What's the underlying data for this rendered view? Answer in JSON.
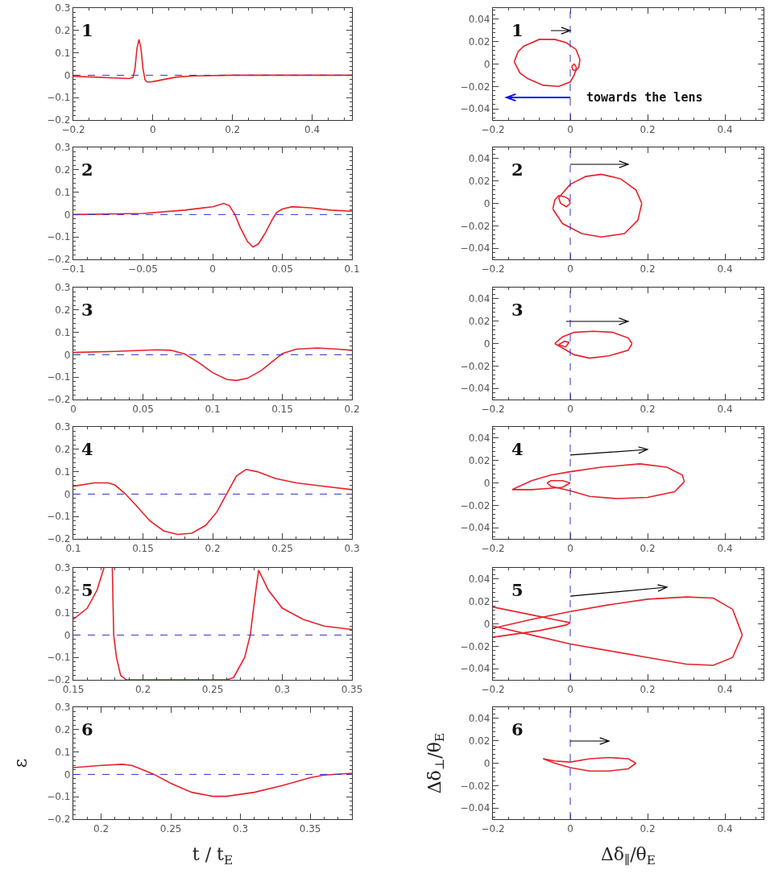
{
  "chart_data": [
    {
      "type": "line",
      "annotations": [
        "1"
      ],
      "x": [
        -0.2,
        -0.15,
        -0.1,
        -0.06,
        -0.05,
        -0.045,
        -0.04,
        -0.035,
        -0.03,
        -0.025,
        -0.02,
        -0.015,
        -0.005,
        0.01,
        0.03,
        0.06,
        0.1,
        0.2,
        0.3,
        0.5
      ],
      "series": [
        {
          "color": "#e8202a",
          "values": [
            -0.005,
            -0.008,
            -0.012,
            -0.015,
            -0.01,
            0.03,
            0.12,
            0.16,
            0.12,
            0.03,
            -0.02,
            -0.03,
            -0.03,
            -0.025,
            -0.018,
            -0.008,
            -0.003,
            0,
            0,
            0
          ]
        }
      ],
      "xlim": [
        -0.2,
        0.5
      ],
      "xticks": [
        -0.2,
        0,
        0.2,
        0.4
      ],
      "ylim": [
        -0.2,
        0.3
      ],
      "yticks": [
        -0.2,
        -0.1,
        0,
        0.1,
        0.2,
        0.3
      ],
      "line_style": "solid",
      "ref_lines": [
        {
          "axis": "y",
          "value": 0,
          "color": "#3333cc",
          "line_style": "dashed"
        }
      ]
    },
    {
      "type": "line",
      "annotations": [
        "1",
        "towards the lens"
      ],
      "series": [
        {
          "color": "#e8202a",
          "x": [
            -0.145,
            -0.13,
            -0.11,
            -0.07,
            -0.03,
            0,
            0.01,
            0.012,
            0.016
          ],
          "values": [
            0.002,
            -0.008,
            -0.013,
            -0.019,
            -0.02,
            -0.016,
            -0.01,
            -0.008,
            -0.003
          ]
        },
        {
          "color": "#e8202a",
          "x": [
            -0.145,
            -0.135,
            -0.12,
            -0.08,
            -0.04,
            -0.01,
            0.015,
            0.025
          ],
          "values": [
            0.002,
            0.011,
            0.016,
            0.022,
            0.022,
            0.019,
            0.013,
            0.004
          ]
        },
        {
          "color": "#e8202a",
          "x": [
            0.004,
            0.006,
            0.014,
            0.022,
            0.025
          ],
          "values": [
            -0.002,
            -0.005,
            -0.006,
            -0.003,
            0.004
          ]
        },
        {
          "color": "#e8202a",
          "x": [
            0.004,
            0.01,
            0.016
          ],
          "values": [
            -0.002,
            0,
            -0.003
          ]
        }
      ],
      "xlim": [
        -0.2,
        0.5
      ],
      "xticks": [
        -0.2,
        0,
        0.2,
        0.4
      ],
      "ylim": [
        -0.05,
        0.05
      ],
      "yticks": [
        -0.04,
        -0.02,
        0,
        0.02,
        0.04
      ],
      "line_style": "solid",
      "ref_lines": [
        {
          "axis": "x",
          "value": 0,
          "color": "#3333cc",
          "line_style": "dashed"
        }
      ]
    },
    {
      "type": "line",
      "annotations": [
        "2"
      ],
      "x": [
        -0.1,
        -0.05,
        -0.02,
        0,
        0.008,
        0.012,
        0.016,
        0.02,
        0.025,
        0.029,
        0.033,
        0.038,
        0.043,
        0.046,
        0.05,
        0.057,
        0.07,
        0.085,
        0.1
      ],
      "series": [
        {
          "color": "#e8202a",
          "values": [
            0,
            0.005,
            0.02,
            0.035,
            0.05,
            0.04,
            0,
            -0.06,
            -0.12,
            -0.145,
            -0.13,
            -0.08,
            -0.02,
            0.01,
            0.025,
            0.035,
            0.03,
            0.02,
            0.015
          ]
        }
      ],
      "xlim": [
        -0.1,
        0.1
      ],
      "xticks": [
        -0.1,
        -0.05,
        0,
        0.05,
        0.1
      ],
      "ylim": [
        -0.2,
        0.3
      ],
      "yticks": [
        -0.2,
        -0.1,
        0,
        0.1,
        0.2,
        0.3
      ],
      "line_style": "solid",
      "ref_lines": [
        {
          "axis": "y",
          "value": 0,
          "color": "#3333cc",
          "line_style": "dashed"
        }
      ]
    },
    {
      "type": "line",
      "annotations": [
        "2"
      ],
      "series": [
        {
          "color": "#e8202a",
          "x": [
            -0.03,
            0,
            0.04,
            0.08,
            0.13,
            0.17,
            0.185
          ],
          "values": [
            0.005,
            0.017,
            0.024,
            0.026,
            0.022,
            0.012,
            0
          ]
        },
        {
          "color": "#e8202a",
          "x": [
            -0.045,
            -0.02,
            0.03,
            0.08,
            0.14,
            0.175,
            0.185
          ],
          "values": [
            -0.005,
            -0.018,
            -0.027,
            -0.03,
            -0.027,
            -0.015,
            0
          ]
        },
        {
          "color": "#e8202a",
          "x": [
            -0.045,
            -0.04,
            -0.03,
            -0.015,
            -0.004,
            0
          ],
          "values": [
            -0.005,
            0.003,
            0.007,
            0.006,
            0.004,
            0
          ]
        },
        {
          "color": "#e8202a",
          "x": [
            -0.03,
            -0.025,
            -0.01,
            0
          ],
          "values": [
            0.005,
            0,
            -0.003,
            0
          ]
        }
      ],
      "xlim": [
        -0.2,
        0.5
      ],
      "xticks": [
        -0.2,
        0,
        0.2,
        0.4
      ],
      "ylim": [
        -0.05,
        0.05
      ],
      "yticks": [
        -0.04,
        -0.02,
        0,
        0.02,
        0.04
      ],
      "line_style": "solid",
      "ref_lines": [
        {
          "axis": "x",
          "value": 0,
          "color": "#3333cc",
          "line_style": "dashed"
        }
      ]
    },
    {
      "type": "line",
      "annotations": [
        "3"
      ],
      "x": [
        0,
        0.03,
        0.06,
        0.07,
        0.08,
        0.09,
        0.1,
        0.11,
        0.117,
        0.125,
        0.135,
        0.145,
        0.15,
        0.16,
        0.175,
        0.19,
        0.2
      ],
      "series": [
        {
          "color": "#e8202a",
          "values": [
            0.01,
            0.015,
            0.022,
            0.02,
            0.003,
            -0.035,
            -0.08,
            -0.11,
            -0.115,
            -0.105,
            -0.07,
            -0.02,
            0.005,
            0.025,
            0.03,
            0.025,
            0.02
          ]
        }
      ],
      "xlim": [
        0,
        0.2
      ],
      "xticks": [
        0,
        0.05,
        0.1,
        0.15,
        0.2
      ],
      "ylim": [
        -0.2,
        0.3
      ],
      "yticks": [
        -0.2,
        -0.1,
        0,
        0.1,
        0.2,
        0.3
      ],
      "line_style": "solid",
      "ref_lines": [
        {
          "axis": "y",
          "value": 0,
          "color": "#3333cc",
          "line_style": "dashed"
        }
      ]
    },
    {
      "type": "line",
      "annotations": [
        "3"
      ],
      "series": [
        {
          "color": "#e8202a",
          "x": [
            -0.04,
            -0.02,
            0.01,
            0.06,
            0.11,
            0.15,
            0.16
          ],
          "values": [
            0,
            0.006,
            0.01,
            0.011,
            0.01,
            0.005,
            0
          ]
        },
        {
          "color": "#e8202a",
          "x": [
            -0.04,
            -0.02,
            0.01,
            0.05,
            0.1,
            0.15,
            0.16
          ],
          "values": [
            0,
            -0.004,
            -0.01,
            -0.013,
            -0.011,
            -0.006,
            0
          ]
        },
        {
          "color": "#e8202a",
          "x": [
            -0.03,
            -0.015,
            -0.003
          ],
          "values": [
            -0.001,
            0.002,
            0.001
          ]
        },
        {
          "color": "#e8202a",
          "x": [
            -0.03,
            -0.012,
            -0.003
          ],
          "values": [
            -0.001,
            -0.003,
            0.001
          ]
        }
      ],
      "xlim": [
        -0.2,
        0.5
      ],
      "xticks": [
        -0.2,
        0,
        0.2,
        0.4
      ],
      "ylim": [
        -0.05,
        0.05
      ],
      "yticks": [
        -0.04,
        -0.02,
        0,
        0.02,
        0.04
      ],
      "line_style": "solid",
      "ref_lines": [
        {
          "axis": "x",
          "value": 0,
          "color": "#3333cc",
          "line_style": "dashed"
        }
      ]
    },
    {
      "type": "line",
      "annotations": [
        "4"
      ],
      "x": [
        0.1,
        0.115,
        0.125,
        0.13,
        0.137,
        0.145,
        0.155,
        0.165,
        0.175,
        0.185,
        0.195,
        0.203,
        0.21,
        0.217,
        0.224,
        0.232,
        0.245,
        0.26,
        0.28,
        0.3
      ],
      "series": [
        {
          "color": "#e8202a",
          "values": [
            0.035,
            0.05,
            0.05,
            0.04,
            0.003,
            -0.05,
            -0.12,
            -0.165,
            -0.18,
            -0.175,
            -0.14,
            -0.08,
            0,
            0.08,
            0.11,
            0.1,
            0.07,
            0.05,
            0.035,
            0.02
          ]
        }
      ],
      "xlim": [
        0.1,
        0.3
      ],
      "xticks": [
        0.1,
        0.15,
        0.2,
        0.25,
        0.3
      ],
      "ylim": [
        -0.2,
        0.3
      ],
      "yticks": [
        -0.2,
        -0.1,
        0,
        0.1,
        0.2,
        0.3
      ],
      "line_style": "solid",
      "ref_lines": [
        {
          "axis": "y",
          "value": 0,
          "color": "#3333cc",
          "line_style": "dashed"
        }
      ]
    },
    {
      "type": "line",
      "annotations": [
        "4"
      ],
      "series": [
        {
          "color": "#e8202a",
          "x": [
            -0.15,
            -0.1,
            -0.05,
            0,
            0.08,
            0.18,
            0.25,
            0.29,
            0.295
          ],
          "values": [
            -0.006,
            0.002,
            0.007,
            0.01,
            0.014,
            0.017,
            0.014,
            0.007,
            0.001
          ]
        },
        {
          "color": "#e8202a",
          "x": [
            -0.06,
            -0.05,
            0,
            0.05,
            0.12,
            0.2,
            0.27,
            0.295
          ],
          "values": [
            0,
            -0.003,
            -0.007,
            -0.012,
            -0.014,
            -0.013,
            -0.008,
            0.001
          ]
        },
        {
          "color": "#e8202a",
          "x": [
            -0.06,
            -0.05,
            -0.02,
            0
          ],
          "values": [
            0,
            0.002,
            0.002,
            0
          ]
        },
        {
          "color": "#e8202a",
          "x": [
            -0.15,
            -0.1,
            -0.06,
            -0.02,
            0
          ],
          "values": [
            -0.006,
            -0.006,
            -0.005,
            -0.004,
            0
          ]
        }
      ],
      "xlim": [
        -0.2,
        0.5
      ],
      "xticks": [
        -0.2,
        0,
        0.2,
        0.4
      ],
      "ylim": [
        -0.05,
        0.05
      ],
      "yticks": [
        -0.04,
        -0.02,
        0,
        0.02,
        0.04
      ],
      "line_style": "solid",
      "ref_lines": [
        {
          "axis": "x",
          "value": 0,
          "color": "#3333cc",
          "line_style": "dashed"
        }
      ]
    },
    {
      "type": "line",
      "annotations": [
        "5"
      ],
      "x": [
        0.15,
        0.16,
        0.167,
        0.172,
        0.175,
        0.178,
        0.179,
        0.181,
        0.184,
        0.188,
        0.22,
        0.26,
        0.265,
        0.273,
        0.277,
        0.281,
        0.283,
        0.29,
        0.3,
        0.315,
        0.33,
        0.35
      ],
      "series": [
        {
          "color": "#e8202a",
          "values": [
            0.07,
            0.12,
            0.2,
            0.3,
            null,
            0.3,
            0,
            -0.1,
            -0.18,
            -0.2,
            -0.2,
            -0.2,
            -0.19,
            -0.1,
            0,
            0.2,
            0.29,
            0.2,
            0.12,
            0.07,
            0.04,
            0.025
          ]
        }
      ],
      "xlim": [
        0.15,
        0.35
      ],
      "xticks": [
        0.15,
        0.2,
        0.25,
        0.3,
        0.35
      ],
      "ylim": [
        -0.2,
        0.3
      ],
      "yticks": [
        -0.2,
        -0.1,
        0,
        0.1,
        0.2,
        0.3
      ],
      "line_style": "solid",
      "ref_lines": [
        {
          "axis": "y",
          "value": 0,
          "color": "#3333cc",
          "line_style": "dashed"
        }
      ]
    },
    {
      "type": "line",
      "annotations": [
        "5"
      ],
      "series": [
        {
          "color": "#e8202a",
          "x": [
            -0.2,
            -0.1,
            -0.03,
            0
          ],
          "values": [
            0.015,
            0.008,
            0.003,
            0.001
          ]
        },
        {
          "color": "#e8202a",
          "x": [
            -0.2,
            -0.08,
            -0.01,
            0
          ],
          "values": [
            -0.012,
            -0.006,
            -0.001,
            0.001
          ]
        },
        {
          "color": "#e8202a",
          "x": [
            -0.2,
            -0.1,
            0,
            0.1,
            0.2,
            0.3,
            0.37,
            0.42,
            0.445
          ],
          "values": [
            -0.004,
            0.004,
            0.011,
            0.017,
            0.022,
            0.024,
            0.023,
            0.013,
            -0.01
          ]
        },
        {
          "color": "#e8202a",
          "x": [
            -0.2,
            -0.1,
            0,
            0.1,
            0.2,
            0.3,
            0.37,
            0.42,
            0.445
          ],
          "values": [
            -0.002,
            -0.01,
            -0.018,
            -0.024,
            -0.03,
            -0.036,
            -0.037,
            -0.03,
            -0.01
          ]
        }
      ],
      "xlim": [
        -0.2,
        0.5
      ],
      "xticks": [
        -0.2,
        0,
        0.2,
        0.4
      ],
      "ylim": [
        -0.05,
        0.05
      ],
      "yticks": [
        -0.04,
        -0.02,
        0,
        0.02,
        0.04
      ],
      "line_style": "solid",
      "ref_lines": [
        {
          "axis": "x",
          "value": 0,
          "color": "#3333cc",
          "line_style": "dashed"
        }
      ]
    },
    {
      "type": "line",
      "annotations": [
        "6"
      ],
      "xlabel": "t / t$_{E}$",
      "ylabel": "ε",
      "x": [
        0.18,
        0.2,
        0.215,
        0.222,
        0.23,
        0.238,
        0.25,
        0.265,
        0.28,
        0.29,
        0.31,
        0.33,
        0.35,
        0.36,
        0.38
      ],
      "series": [
        {
          "color": "#e8202a",
          "values": [
            0.03,
            0.04,
            0.045,
            0.04,
            0.02,
            0,
            -0.04,
            -0.08,
            -0.098,
            -0.098,
            -0.08,
            -0.05,
            -0.015,
            -0.003,
            0.005
          ]
        }
      ],
      "xlim": [
        0.18,
        0.38
      ],
      "xticks": [
        0.2,
        0.25,
        0.3,
        0.35
      ],
      "ylim": [
        -0.2,
        0.3
      ],
      "yticks": [
        -0.2,
        -0.1,
        0,
        0.1,
        0.2,
        0.3
      ],
      "line_style": "solid",
      "ref_lines": [
        {
          "axis": "y",
          "value": 0,
          "color": "#3333cc",
          "line_style": "dashed"
        }
      ]
    },
    {
      "type": "line",
      "annotations": [
        "6"
      ],
      "xlabel": "Δδ$_{∥}$/θ$_{E}$",
      "ylabel": "Δδ$_{⊥}$/θ$_{E}$",
      "series": [
        {
          "color": "#e8202a",
          "x": [
            -0.07,
            -0.04,
            0,
            0.05,
            0.1,
            0.15,
            0.17
          ],
          "values": [
            0.004,
            0.002,
            0.001,
            0.004,
            0.005,
            0.004,
            0
          ]
        },
        {
          "color": "#e8202a",
          "x": [
            -0.07,
            -0.04,
            0,
            0.05,
            0.1,
            0.15,
            0.17
          ],
          "values": [
            0.004,
            0,
            -0.004,
            -0.007,
            -0.007,
            -0.005,
            0
          ]
        }
      ],
      "xlim": [
        -0.2,
        0.5
      ],
      "xticks": [
        -0.2,
        0,
        0.2,
        0.4
      ],
      "ylim": [
        -0.05,
        0.05
      ],
      "yticks": [
        -0.04,
        -0.02,
        0,
        0.02,
        0.04
      ],
      "line_style": "solid",
      "ref_lines": [
        {
          "axis": "x",
          "value": 0,
          "color": "#3333cc",
          "line_style": "dashed"
        }
      ]
    }
  ]
}
